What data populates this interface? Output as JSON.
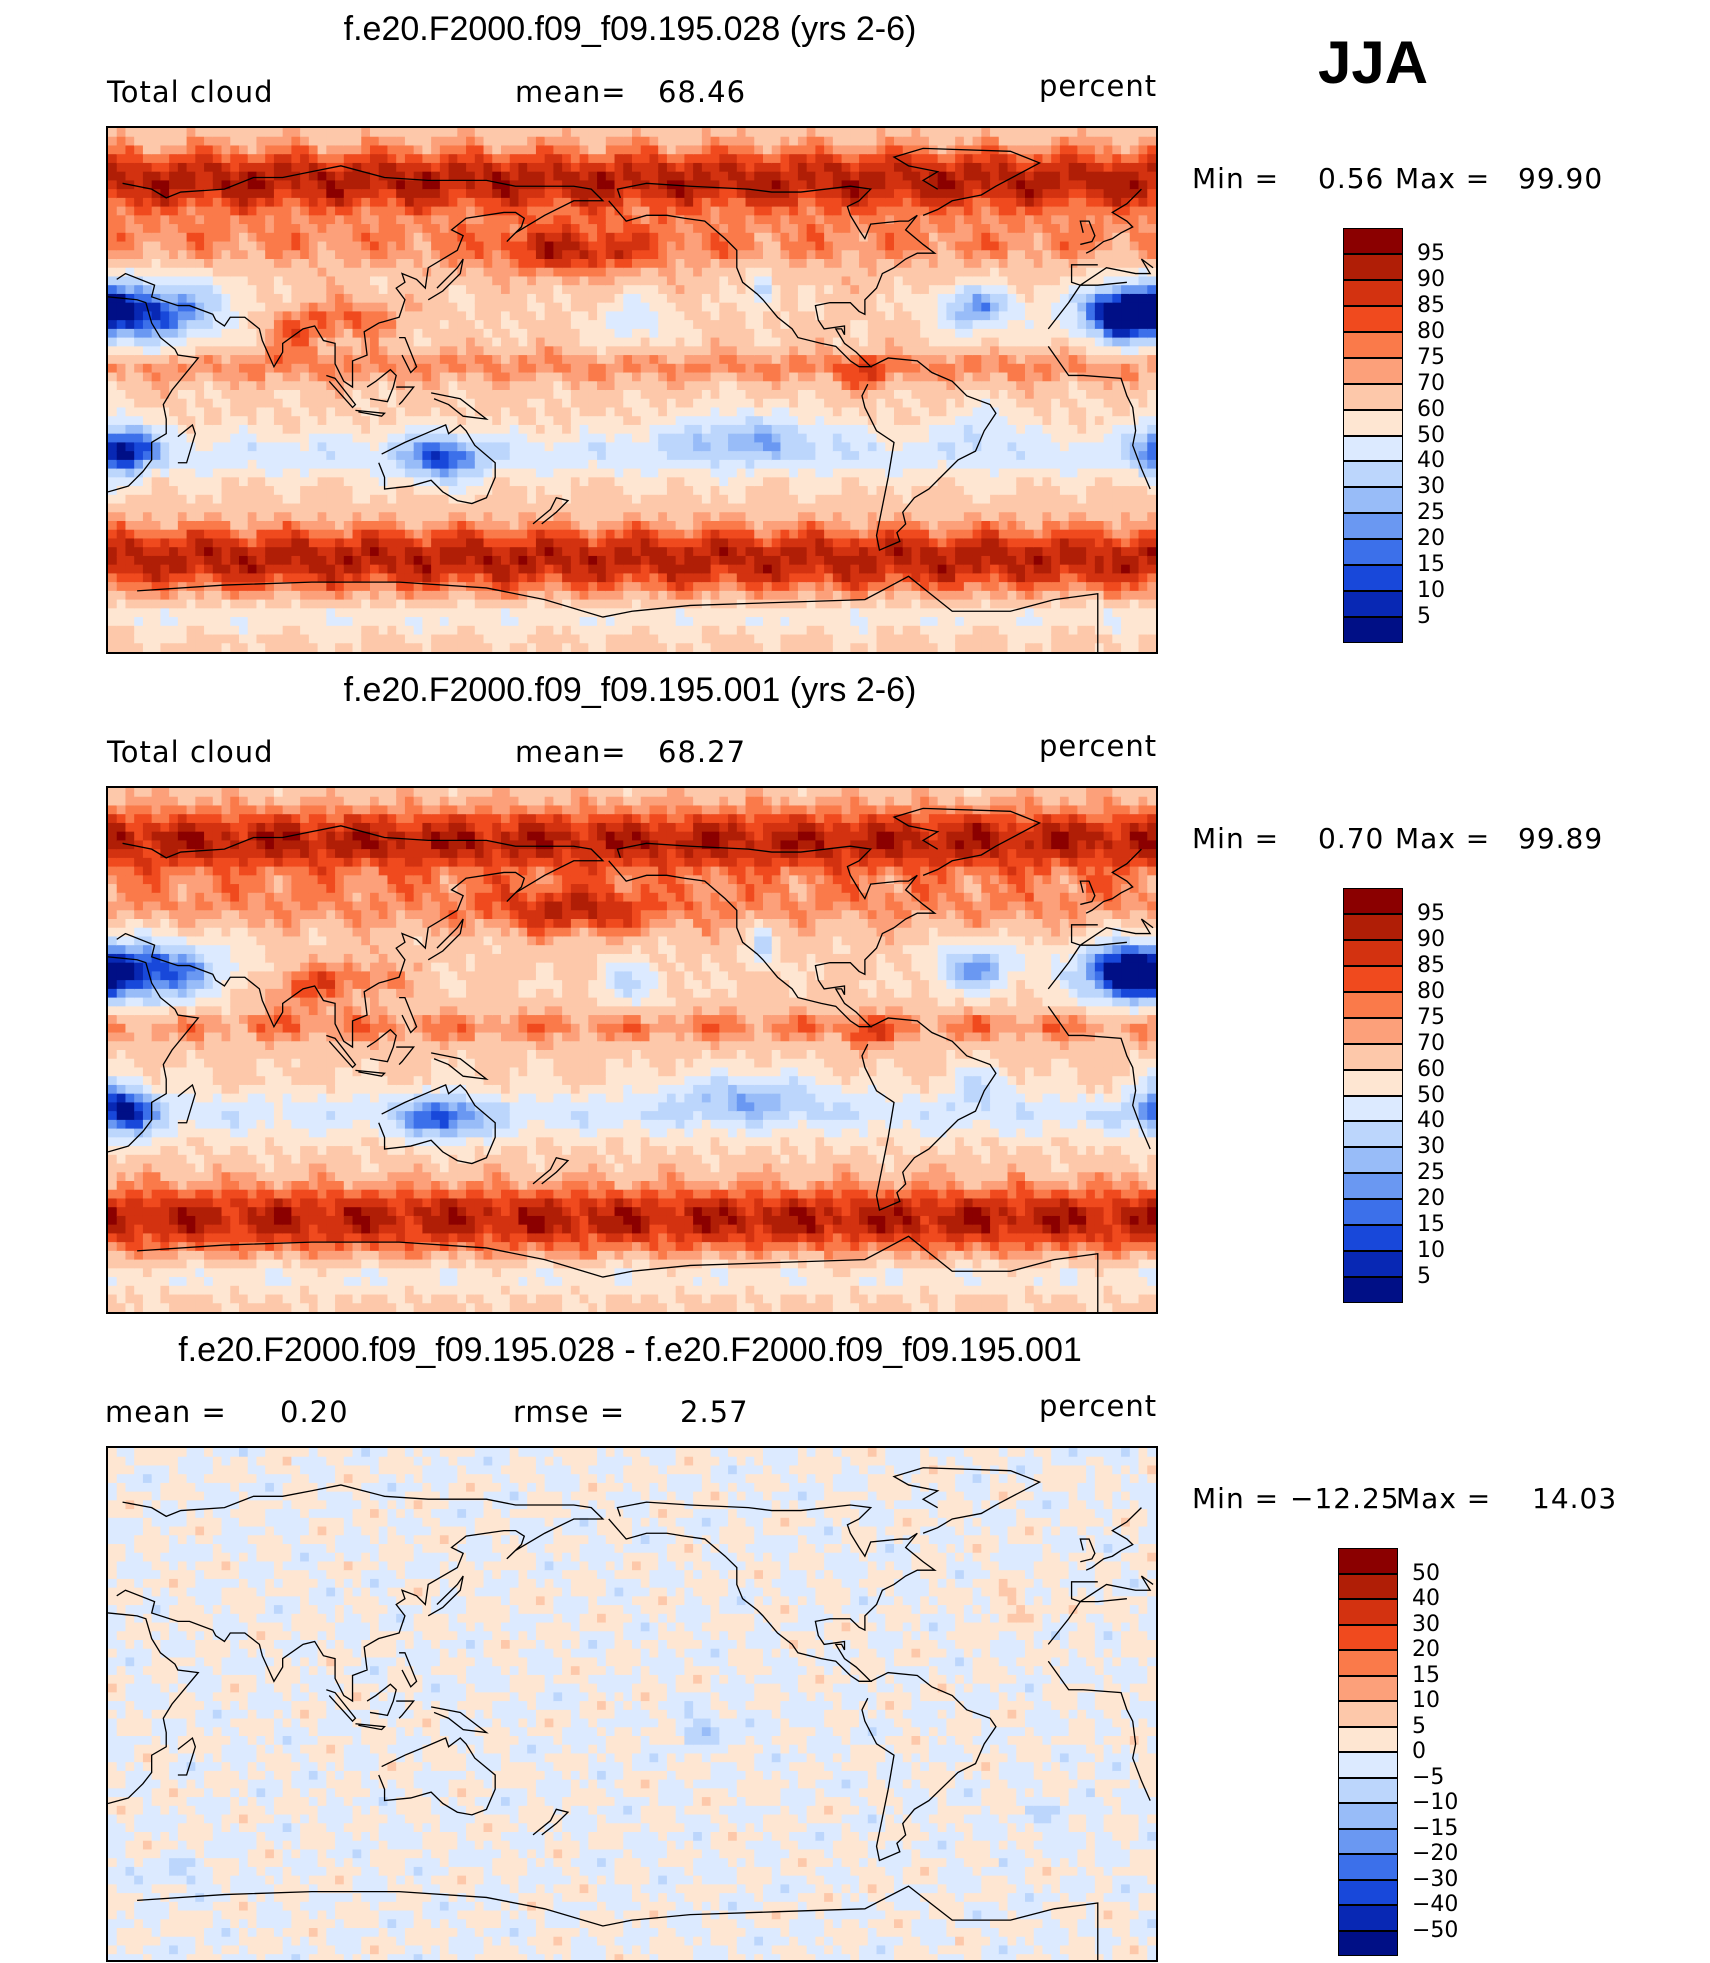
{
  "season": "JJA",
  "panels": [
    {
      "title": "f.e20.F2000.f09_f09.195.028 (yrs 2-6)",
      "left_label": "Total cloud",
      "mid_label": "mean=",
      "mid_value": "68.46",
      "right_label": "percent",
      "minmax": {
        "min_label": "Min =",
        "min": "0.56",
        "max_label": "Max =",
        "max": "99.90"
      },
      "colorbar": {
        "levels": [
          "95",
          "90",
          "85",
          "80",
          "75",
          "70",
          "60",
          "50",
          "40",
          "30",
          "25",
          "20",
          "15",
          "10",
          "5"
        ],
        "colors": [
          "#8b0000",
          "#b01e06",
          "#d33210",
          "#f04a1e",
          "#fa7a4a",
          "#fca07a",
          "#fdc8aa",
          "#fee6d2",
          "#dceaff",
          "#bcd6fc",
          "#98bcf8",
          "#6a98f2",
          "#3c70ea",
          "#1848da",
          "#0828b4",
          "#000f86"
        ]
      },
      "field": "control"
    },
    {
      "title": "f.e20.F2000.f09_f09.195.001 (yrs 2-6)",
      "left_label": "Total cloud",
      "mid_label": "mean=",
      "mid_value": "68.27",
      "right_label": "percent",
      "minmax": {
        "min_label": "Min =",
        "min": "0.70",
        "max_label": "Max =",
        "max": "99.89"
      },
      "colorbar": {
        "levels": [
          "95",
          "90",
          "85",
          "80",
          "75",
          "70",
          "60",
          "50",
          "40",
          "30",
          "25",
          "20",
          "15",
          "10",
          "5"
        ],
        "colors": [
          "#8b0000",
          "#b01e06",
          "#d33210",
          "#f04a1e",
          "#fa7a4a",
          "#fca07a",
          "#fdc8aa",
          "#fee6d2",
          "#dceaff",
          "#bcd6fc",
          "#98bcf8",
          "#6a98f2",
          "#3c70ea",
          "#1848da",
          "#0828b4",
          "#000f86"
        ]
      },
      "field": "test"
    },
    {
      "title": "f.e20.F2000.f09_f09.195.028 - f.e20.F2000.f09_f09.195.001",
      "left_label": "mean =",
      "left_value": "0.20",
      "mid_label": "rmse =",
      "mid_value": "2.57",
      "right_label": "percent",
      "minmax": {
        "min_label": "Min =",
        "min": "−12.25",
        "max_label": "Max =",
        "max": "14.03"
      },
      "colorbar": {
        "levels": [
          "50",
          "40",
          "30",
          "20",
          "15",
          "10",
          "5",
          "0",
          "−5",
          "−10",
          "−15",
          "−20",
          "−30",
          "−40",
          "−50"
        ],
        "colors": [
          "#8b0000",
          "#b01e06",
          "#d33210",
          "#f04a1e",
          "#fa7a4a",
          "#fca07a",
          "#fdc8aa",
          "#fee6d2",
          "#dceaff",
          "#bcd6fc",
          "#98bcf8",
          "#6a98f2",
          "#3c70ea",
          "#1848da",
          "#0828b4",
          "#000f86"
        ]
      },
      "field": "diff"
    }
  ],
  "chart_data": {
    "type": "heatmap",
    "variable": "Total cloud",
    "units": "percent",
    "projection": "cylindrical equidistant, Pacific-centered (lon 0-360)",
    "panels": [
      {
        "case": "f.e20.F2000.f09_f09.195.028 (yrs 2-6)",
        "mean": 68.46,
        "min": 0.56,
        "max": 99.9,
        "contour_levels": [
          5,
          10,
          15,
          20,
          25,
          30,
          40,
          50,
          60,
          70,
          75,
          80,
          85,
          90,
          95
        ]
      },
      {
        "case": "f.e20.F2000.f09_f09.195.001 (yrs 2-6)",
        "mean": 68.27,
        "min": 0.7,
        "max": 99.89,
        "contour_levels": [
          5,
          10,
          15,
          20,
          25,
          30,
          40,
          50,
          60,
          70,
          75,
          80,
          85,
          90,
          95
        ]
      },
      {
        "case": "f.e20.F2000.f09_f09.195.028 - f.e20.F2000.f09_f09.195.001",
        "mean": 0.2,
        "rmse": 2.57,
        "min": -12.25,
        "max": 14.03,
        "contour_levels": [
          -50,
          -40,
          -30,
          -20,
          -15,
          -10,
          -5,
          0,
          5,
          10,
          15,
          20,
          30,
          40,
          50
        ]
      }
    ],
    "legend_placement": "right"
  }
}
